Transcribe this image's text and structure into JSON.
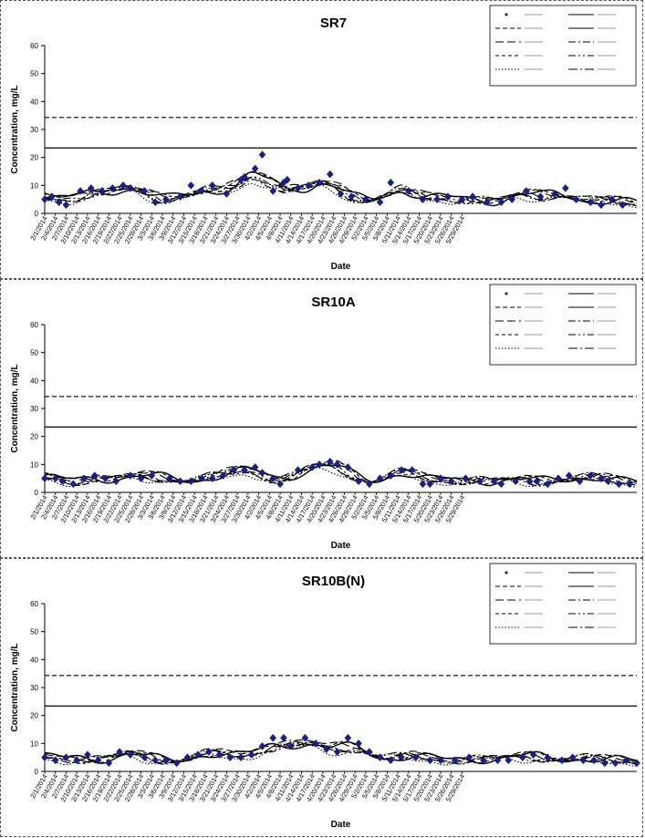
{
  "chart_data": [
    {
      "type": "line",
      "title": "SR7",
      "xlabel": "Date",
      "ylabel": "Concentration, mg/L",
      "ylim": [
        0,
        60
      ],
      "yticks": [
        0,
        10,
        20,
        30,
        40,
        50,
        60
      ],
      "x_tick_labels": [
        "2/1/2014",
        "2/4/2014",
        "2/7/2014",
        "2/10/2014",
        "2/13/2014",
        "2/16/2014",
        "2/19/2014",
        "2/22/2014",
        "2/25/2014",
        "2/28/2014",
        "3/3/2014",
        "3/6/2014",
        "3/9/2014",
        "3/12/2014",
        "3/15/2014",
        "3/18/2014",
        "3/21/2014",
        "3/24/2014",
        "3/27/2014",
        "3/30/2014",
        "4/2/2014",
        "4/5/2014",
        "4/8/2014",
        "4/11/2014",
        "4/14/2014",
        "4/17/2014",
        "4/20/2014",
        "4/23/2014",
        "4/26/2014",
        "4/29/2014",
        "5/2/2014",
        "5/5/2014",
        "5/8/2014",
        "5/11/2014",
        "5/14/2014",
        "5/17/2014",
        "5/20/2014",
        "5/23/2014",
        "5/26/2014",
        "5/29/2014"
      ],
      "legend_position": "top-right",
      "reference_lines": [
        {
          "name": "acute",
          "value": 34.3,
          "style": "dashed"
        },
        {
          "name": "chronic",
          "value": 23.4,
          "style": "solid"
        }
      ],
      "observed": {
        "name": "SR7",
        "points": [
          [
            0,
            5
          ],
          [
            2,
            6
          ],
          [
            4,
            4
          ],
          [
            6,
            3
          ],
          [
            10,
            8
          ],
          [
            13,
            9
          ],
          [
            16,
            8
          ],
          [
            19,
            9
          ],
          [
            22,
            10
          ],
          [
            24,
            9
          ],
          [
            28,
            8
          ],
          [
            31,
            4
          ],
          [
            34,
            5
          ],
          [
            38,
            6
          ],
          [
            41,
            10
          ],
          [
            44,
            8
          ],
          [
            47,
            10
          ],
          [
            51,
            7
          ],
          [
            55,
            12
          ],
          [
            56,
            13
          ],
          [
            59,
            16
          ],
          [
            61,
            21
          ],
          [
            64,
            8
          ],
          [
            67,
            11
          ],
          [
            68,
            12
          ],
          [
            71,
            9
          ],
          [
            74,
            10
          ],
          [
            77,
            11
          ],
          [
            80,
            14
          ],
          [
            83,
            7
          ],
          [
            86,
            6
          ],
          [
            90,
            5
          ],
          [
            94,
            4
          ],
          [
            97,
            11
          ],
          [
            102,
            8
          ],
          [
            106,
            5
          ],
          [
            110,
            5
          ],
          [
            113,
            6
          ],
          [
            117,
            5
          ],
          [
            120,
            6
          ],
          [
            124,
            4
          ],
          [
            128,
            4
          ],
          [
            131,
            5
          ],
          [
            135,
            8
          ],
          [
            139,
            6
          ],
          [
            143,
            7
          ],
          [
            146,
            9
          ],
          [
            149,
            5
          ],
          [
            153,
            4
          ],
          [
            156,
            3
          ],
          [
            159,
            5
          ],
          [
            162,
            3
          ]
        ]
      },
      "model_series": [
        {
          "style": "solid",
          "amp": 1.0,
          "phase": 0
        },
        {
          "style": "longdash",
          "amp": 1.1,
          "phase": 1.2
        },
        {
          "style": "dashdot",
          "amp": 0.9,
          "phase": 2.3
        },
        {
          "style": "shortdash",
          "amp": 1.05,
          "phase": 0.7
        },
        {
          "style": "dashdotdot",
          "amp": 0.95,
          "phase": 1.8
        },
        {
          "style": "dotted",
          "amp": 0.85,
          "phase": 3.1
        },
        {
          "style": "dashdotlong",
          "amp": 1.0,
          "phase": 2.7
        }
      ]
    },
    {
      "type": "line",
      "title": "SR10A",
      "xlabel": "Date",
      "ylabel": "Concentration, mg/L",
      "ylim": [
        0,
        60
      ],
      "yticks": [
        0,
        10,
        20,
        30,
        40,
        50,
        60
      ],
      "x_tick_labels": [
        "2/1/2014",
        "2/4/2014",
        "2/7/2014",
        "2/10/2014",
        "2/13/2014",
        "2/16/2014",
        "2/19/2014",
        "2/22/2014",
        "2/25/2014",
        "2/28/2014",
        "3/3/2014",
        "3/6/2014",
        "3/9/2014",
        "3/12/2014",
        "3/15/2014",
        "3/18/2014",
        "3/21/2014",
        "3/24/2014",
        "3/27/2014",
        "3/30/2014",
        "4/2/2014",
        "4/5/2014",
        "4/8/2014",
        "4/11/2014",
        "4/14/2014",
        "4/17/2014",
        "4/20/2014",
        "4/23/2014",
        "4/26/2014",
        "4/29/2014",
        "5/2/2014",
        "5/5/2014",
        "5/8/2014",
        "5/11/2014",
        "5/14/2014",
        "5/17/2014",
        "5/20/2014",
        "5/23/2014",
        "5/26/2014",
        "5/29/2014"
      ],
      "legend_position": "top-right",
      "reference_lines": [
        {
          "name": "acute",
          "value": 34.3,
          "style": "dashed"
        },
        {
          "name": "chronic",
          "value": 23.4,
          "style": "solid"
        }
      ],
      "observed": {
        "name": "SR10A",
        "points": [
          [
            0,
            5
          ],
          [
            3,
            5
          ],
          [
            5,
            4
          ],
          [
            8,
            3
          ],
          [
            11,
            5
          ],
          [
            14,
            6
          ],
          [
            17,
            5
          ],
          [
            20,
            4
          ],
          [
            24,
            6
          ],
          [
            27,
            5
          ],
          [
            30,
            6
          ],
          [
            35,
            5
          ],
          [
            38,
            4
          ],
          [
            41,
            4
          ],
          [
            44,
            5
          ],
          [
            47,
            5
          ],
          [
            50,
            6
          ],
          [
            53,
            8
          ],
          [
            56,
            8
          ],
          [
            59,
            9
          ],
          [
            61,
            7
          ],
          [
            64,
            5
          ],
          [
            66,
            3
          ],
          [
            71,
            8
          ],
          [
            75,
            9
          ],
          [
            77,
            10
          ],
          [
            80,
            11
          ],
          [
            82,
            10
          ],
          [
            85,
            9
          ],
          [
            88,
            4
          ],
          [
            91,
            3
          ],
          [
            94,
            5
          ],
          [
            97,
            6
          ],
          [
            100,
            8
          ],
          [
            103,
            8
          ],
          [
            106,
            3
          ],
          [
            108,
            3
          ],
          [
            111,
            5
          ],
          [
            114,
            4
          ],
          [
            118,
            5
          ],
          [
            122,
            4
          ],
          [
            126,
            4
          ],
          [
            128,
            3
          ],
          [
            132,
            4
          ],
          [
            136,
            4
          ],
          [
            138,
            4
          ],
          [
            141,
            3
          ],
          [
            144,
            5
          ],
          [
            147,
            6
          ],
          [
            150,
            4
          ],
          [
            153,
            6
          ],
          [
            156,
            5
          ],
          [
            158,
            4
          ],
          [
            161,
            3
          ],
          [
            164,
            3
          ]
        ]
      },
      "model_series": [
        {
          "style": "solid",
          "amp": 1.0,
          "phase": 0.4
        },
        {
          "style": "longdash",
          "amp": 1.1,
          "phase": 1.5
        },
        {
          "style": "dashdot",
          "amp": 0.9,
          "phase": 2.6
        },
        {
          "style": "shortdash",
          "amp": 1.05,
          "phase": 0.9
        },
        {
          "style": "dashdotdot",
          "amp": 0.95,
          "phase": 2.1
        },
        {
          "style": "dotted",
          "amp": 0.85,
          "phase": 3.4
        },
        {
          "style": "dashdotlong",
          "amp": 1.0,
          "phase": 2.9
        }
      ]
    },
    {
      "type": "line",
      "title": "SR10B(N)",
      "xlabel": "Date",
      "ylabel": "Concentration, mg/L",
      "ylim": [
        0,
        60
      ],
      "yticks": [
        0,
        10,
        20,
        30,
        40,
        50,
        60
      ],
      "x_tick_labels": [
        "2/1/2014",
        "2/4/2014",
        "2/7/2014",
        "2/10/2014",
        "2/13/2014",
        "2/16/2014",
        "2/19/2014",
        "2/22/2014",
        "2/25/2014",
        "2/28/2014",
        "3/3/2014",
        "3/6/2014",
        "3/9/2014",
        "3/12/2014",
        "3/15/2014",
        "3/18/2014",
        "3/21/2014",
        "3/24/2014",
        "3/27/2014",
        "3/30/2014",
        "4/2/2014",
        "4/5/2014",
        "4/8/2014",
        "4/11/2014",
        "4/14/2014",
        "4/17/2014",
        "4/20/2014",
        "4/23/2014",
        "4/26/2014",
        "4/29/2014",
        "5/2/2014",
        "5/5/2014",
        "5/8/2014",
        "5/11/2014",
        "5/14/2014",
        "5/17/2014",
        "5/20/2014",
        "5/23/2014",
        "5/26/2014",
        "5/29/2014"
      ],
      "legend_position": "top-right",
      "reference_lines": [
        {
          "name": "acute",
          "value": 34.3,
          "style": "dashed"
        },
        {
          "name": "chronic",
          "value": 23.4,
          "style": "solid"
        }
      ],
      "observed": {
        "name": "SR10B(N)",
        "points": [
          [
            0,
            5
          ],
          [
            3,
            4
          ],
          [
            6,
            5
          ],
          [
            9,
            4
          ],
          [
            12,
            6
          ],
          [
            15,
            4
          ],
          [
            18,
            3
          ],
          [
            21,
            7
          ],
          [
            24,
            6
          ],
          [
            28,
            5
          ],
          [
            31,
            4
          ],
          [
            34,
            4
          ],
          [
            37,
            3
          ],
          [
            40,
            5
          ],
          [
            43,
            6
          ],
          [
            46,
            7
          ],
          [
            49,
            6
          ],
          [
            52,
            5
          ],
          [
            55,
            5
          ],
          [
            58,
            6
          ],
          [
            61,
            9
          ],
          [
            64,
            12
          ],
          [
            67,
            12
          ],
          [
            69,
            9
          ],
          [
            73,
            12
          ],
          [
            76,
            10
          ],
          [
            79,
            8
          ],
          [
            82,
            7
          ],
          [
            85,
            12
          ],
          [
            88,
            10
          ],
          [
            91,
            7
          ],
          [
            94,
            5
          ],
          [
            97,
            4
          ],
          [
            100,
            5
          ],
          [
            104,
            5
          ],
          [
            108,
            4
          ],
          [
            111,
            4
          ],
          [
            115,
            4
          ],
          [
            119,
            5
          ],
          [
            123,
            4
          ],
          [
            127,
            4
          ],
          [
            130,
            4
          ],
          [
            134,
            5
          ],
          [
            137,
            6
          ],
          [
            141,
            5
          ],
          [
            145,
            4
          ],
          [
            148,
            5
          ],
          [
            151,
            4
          ],
          [
            154,
            4
          ],
          [
            157,
            3
          ],
          [
            160,
            3
          ],
          [
            163,
            4
          ],
          [
            166,
            3
          ]
        ]
      },
      "model_series": [
        {
          "style": "solid",
          "amp": 1.0,
          "phase": 0.8
        },
        {
          "style": "longdash",
          "amp": 1.1,
          "phase": 1.9
        },
        {
          "style": "dashdot",
          "amp": 0.9,
          "phase": 2.4
        },
        {
          "style": "shortdash",
          "amp": 1.05,
          "phase": 1.1
        },
        {
          "style": "dashdotdot",
          "amp": 0.95,
          "phase": 2.5
        },
        {
          "style": "dotted",
          "amp": 0.85,
          "phase": 3.6
        },
        {
          "style": "dashdotlong",
          "amp": 1.0,
          "phase": 3.1
        }
      ]
    }
  ]
}
